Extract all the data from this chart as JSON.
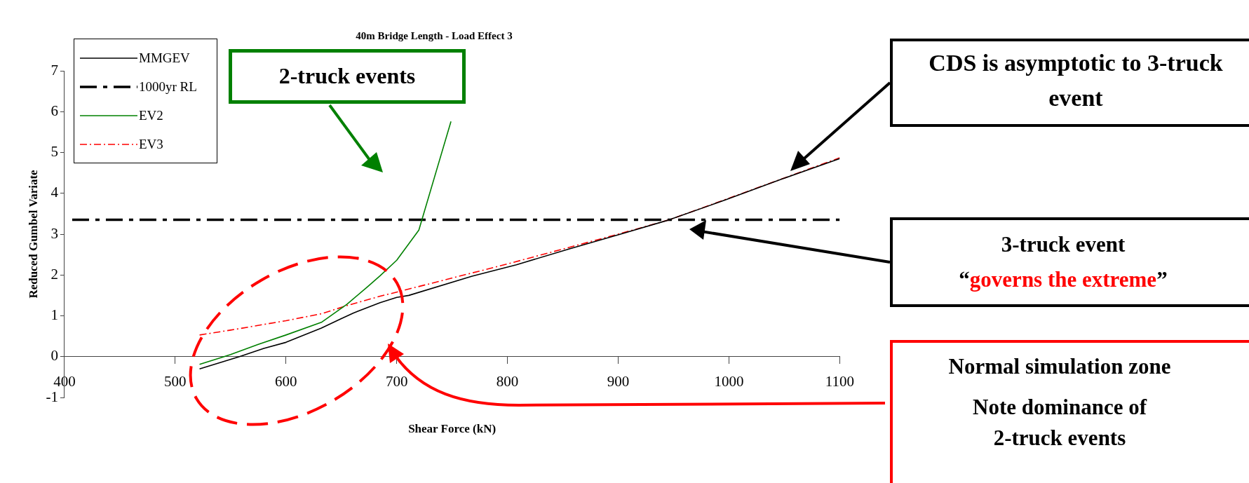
{
  "chart_data": {
    "type": "line",
    "title": "40m Bridge Length - Load Effect 3",
    "xlabel": "Shear Force (kN)",
    "ylabel": "Reduced Gumbel Variate",
    "xlim": [
      400,
      1100
    ],
    "xticks": [
      400,
      500,
      600,
      700,
      800,
      900,
      1000,
      1100
    ],
    "ylim": [
      -1,
      7
    ],
    "yticks": [
      -1,
      0,
      1,
      2,
      3,
      4,
      5,
      6,
      7
    ],
    "grid": false,
    "legend": "top left",
    "marker": "none",
    "series": [
      {
        "name": "MMGEV",
        "color": "#000000",
        "x": [
          522,
          540,
          558,
          580,
          600,
          632,
          649,
          661,
          685,
          700,
          711,
          768,
          808,
          856,
          901,
          946,
          997,
          1048,
          1100
        ],
        "values": [
          -0.3,
          -0.15,
          0,
          0.2,
          0.35,
          0.7,
          0.92,
          1.07,
          1.32,
          1.45,
          1.5,
          1.97,
          2.25,
          2.64,
          2.99,
          3.35,
          3.84,
          4.35,
          4.85
        ]
      },
      {
        "name": "EV2",
        "color": "#008000",
        "x": [
          522,
          550,
          575,
          600,
          632,
          655,
          674,
          685,
          700,
          720,
          749
        ],
        "values": [
          -0.19,
          0.05,
          0.3,
          0.53,
          0.84,
          1.28,
          1.72,
          1.98,
          2.36,
          3.1,
          5.76
        ]
      },
      {
        "name": "EV3",
        "color": "#ff0000",
        "line_style": "dashed",
        "x": [
          522,
          550,
          600,
          632,
          655,
          685,
          700,
          800,
          900,
          946,
          1000,
          1100
        ],
        "values": [
          0.53,
          0.65,
          0.88,
          1.05,
          1.25,
          1.48,
          1.58,
          2.27,
          3.0,
          3.35,
          3.88,
          4.87
        ]
      }
    ],
    "ref_lines": [
      {
        "axis": "y",
        "value": 3.35,
        "label": "1000yr RL",
        "color": "#000000",
        "line_style": "dashed"
      }
    ],
    "annotations": [
      "2-truck events",
      "CDS is asymptotic to 3-truck event",
      "3-truck event",
      "“governs the extreme”",
      "Normal simulation zone",
      "Note dominance of 2-truck events"
    ]
  }
}
